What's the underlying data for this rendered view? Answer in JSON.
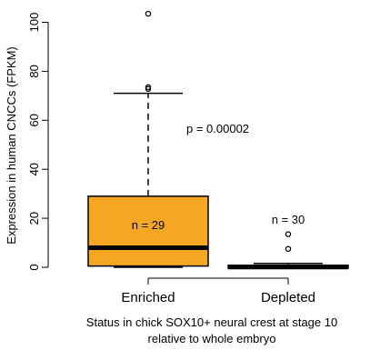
{
  "chart_data": {
    "type": "boxplot",
    "xlabel_lines": [
      "Status in chick SOX10+ neural crest at stage 10",
      "relative to whole embryo"
    ],
    "ylabel": "Expression in human CNCCs (FPKM)",
    "ylim": [
      0,
      100
    ],
    "yticks": [
      0,
      20,
      40,
      60,
      80,
      100
    ],
    "grid": false,
    "legend": "none",
    "annotation": "p = 0.00002",
    "fill_color": "#f5a623",
    "groups": [
      {
        "category": "Enriched",
        "n_label": "n = 29",
        "min": 0,
        "q1": 0.5,
        "median": 8,
        "q3": 29,
        "whisker_high": 71,
        "outliers": [
          72.8,
          73.5,
          103.5
        ]
      },
      {
        "category": "Depleted",
        "n_label": "n = 30",
        "min": 0,
        "q1": 0,
        "median": 0.1,
        "q3": 0.5,
        "whisker_high": 1.6,
        "outliers": [
          7.5,
          13.5
        ]
      }
    ]
  }
}
